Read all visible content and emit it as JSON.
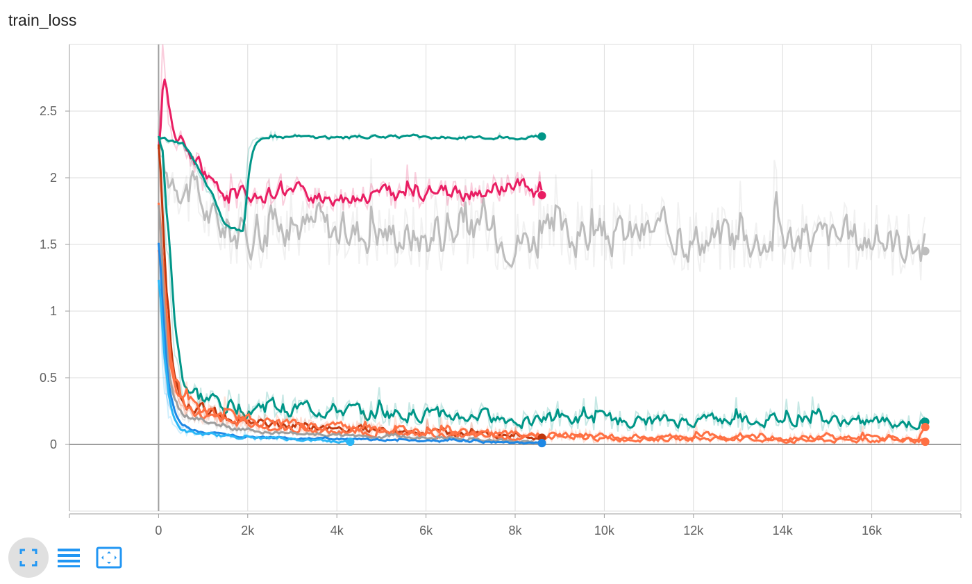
{
  "title": "train_loss",
  "chart_data": {
    "type": "line",
    "title": "train_loss",
    "xlim": [
      -2000,
      18000
    ],
    "ylim": [
      -0.5,
      3.0
    ],
    "x_ticks": [
      0,
      2000,
      4000,
      6000,
      8000,
      10000,
      12000,
      14000,
      16000
    ],
    "x_tick_labels": [
      "0",
      "2k",
      "4k",
      "6k",
      "8k",
      "10k",
      "12k",
      "14k",
      "16k"
    ],
    "y_ticks": [
      0,
      0.5,
      1,
      1.5,
      2,
      2.5
    ],
    "y_tick_labels": [
      "0",
      "0.5",
      "1",
      "1.5",
      "2",
      "2.5"
    ],
    "grid": true,
    "series": [
      {
        "color": "#bdbdbd",
        "x": [
          0,
          100,
          300,
          500,
          800,
          1000,
          1300,
          1600,
          2000,
          2500,
          3000,
          4000,
          5000,
          6000,
          7000,
          8000,
          9000,
          10000,
          11000,
          12000,
          13000,
          14000,
          15000,
          16000,
          17000,
          17200
        ],
        "y": [
          2.3,
          1.9,
          2.05,
          1.95,
          1.85,
          1.75,
          1.65,
          1.6,
          1.55,
          1.6,
          1.65,
          1.6,
          1.6,
          1.55,
          1.6,
          1.55,
          1.55,
          1.55,
          1.6,
          1.55,
          1.55,
          1.55,
          1.55,
          1.55,
          1.5,
          1.45
        ],
        "amp": 0.12
      },
      {
        "color": "#e91e63",
        "x": [
          0,
          100,
          200,
          400,
          600,
          800,
          1000,
          1200,
          1500,
          2000,
          3000,
          4000,
          5000,
          6000,
          7000,
          7500,
          8000,
          8300,
          8600
        ],
        "y": [
          2.3,
          3.0,
          2.4,
          2.3,
          2.2,
          2.15,
          2.0,
          1.9,
          1.85,
          1.88,
          1.87,
          1.85,
          1.88,
          1.87,
          1.88,
          1.9,
          1.95,
          1.9,
          1.87
        ],
        "amp": 0.05
      },
      {
        "color": "#009688",
        "x": [
          0,
          200,
          500,
          800,
          1000,
          1200,
          1400,
          1600,
          1800,
          1900,
          2000,
          2100,
          2500,
          3000,
          4000,
          5000,
          6000,
          7000,
          8000,
          8600
        ],
        "y": [
          2.3,
          2.28,
          2.25,
          2.1,
          1.95,
          1.85,
          1.65,
          1.62,
          1.6,
          1.62,
          2.2,
          2.28,
          2.3,
          2.31,
          2.3,
          2.31,
          2.3,
          2.3,
          2.3,
          2.31
        ],
        "amp": 0.008
      },
      {
        "color": "#009688",
        "x": [
          0,
          100,
          200,
          300,
          400,
          500,
          700,
          1000,
          1500,
          2000,
          3000,
          4000,
          5000,
          6000,
          7000,
          8000,
          9000,
          10000,
          11000,
          12000,
          13000,
          14000,
          15000,
          16000,
          17000,
          17200
        ],
        "y": [
          2.3,
          1.9,
          1.4,
          0.9,
          0.6,
          0.45,
          0.38,
          0.33,
          0.3,
          0.28,
          0.27,
          0.25,
          0.23,
          0.22,
          0.2,
          0.18,
          0.18,
          0.18,
          0.17,
          0.17,
          0.18,
          0.18,
          0.17,
          0.17,
          0.15,
          0.17
        ],
        "amp": 0.05
      },
      {
        "color": "#bf360c",
        "x": [
          0,
          100,
          200,
          300,
          400,
          600,
          1000,
          1500,
          2000,
          3000,
          4000,
          5000,
          6000,
          7000,
          8000,
          8600
        ],
        "y": [
          2.2,
          1.2,
          0.7,
          0.5,
          0.38,
          0.3,
          0.25,
          0.2,
          0.17,
          0.14,
          0.12,
          0.1,
          0.09,
          0.08,
          0.07,
          0.05
        ],
        "amp": 0.04
      },
      {
        "color": "#ff7043",
        "x": [
          0,
          100,
          200,
          300,
          500,
          800,
          1200,
          2000,
          3000,
          4000,
          5000,
          6000,
          7000,
          8000,
          9000,
          10000,
          11000,
          12000,
          13000,
          14000,
          15000,
          16000,
          17000,
          17200
        ],
        "y": [
          1.9,
          1.0,
          0.6,
          0.42,
          0.33,
          0.28,
          0.22,
          0.18,
          0.15,
          0.13,
          0.11,
          0.1,
          0.09,
          0.08,
          0.07,
          0.06,
          0.06,
          0.06,
          0.05,
          0.05,
          0.05,
          0.05,
          0.04,
          0.13
        ],
        "amp": 0.04
      },
      {
        "color": "#ff7043",
        "x": [
          0,
          200,
          500,
          1000,
          2000,
          3000,
          4000,
          5000,
          6000,
          7000,
          8000,
          9000,
          10000,
          11000,
          12000,
          13000,
          14000,
          15000,
          16000,
          17000,
          17200
        ],
        "y": [
          1.5,
          0.5,
          0.3,
          0.2,
          0.14,
          0.11,
          0.09,
          0.08,
          0.07,
          0.06,
          0.05,
          0.05,
          0.04,
          0.04,
          0.04,
          0.04,
          0.03,
          0.03,
          0.03,
          0.03,
          0.02
        ],
        "amp": 0.035
      },
      {
        "color": "#9e9e9e",
        "x": [
          0,
          100,
          200,
          400,
          800,
          1500,
          2500,
          4000,
          5500,
          7000,
          8600
        ],
        "y": [
          1.8,
          0.8,
          0.4,
          0.25,
          0.18,
          0.12,
          0.09,
          0.07,
          0.05,
          0.04,
          0.01
        ],
        "amp": 0.02
      },
      {
        "color": "#1e88e5",
        "x": [
          0,
          100,
          200,
          400,
          800,
          1500,
          2500,
          4000,
          5500,
          7000,
          8600
        ],
        "y": [
          1.5,
          0.6,
          0.3,
          0.15,
          0.1,
          0.07,
          0.05,
          0.04,
          0.03,
          0.02,
          0.01
        ],
        "amp": 0.015
      },
      {
        "color": "#29b6f6",
        "x": [
          0,
          100,
          200,
          300,
          500,
          800,
          1200,
          2000,
          3000,
          4000,
          4300
        ],
        "y": [
          1.2,
          0.5,
          0.25,
          0.15,
          0.1,
          0.08,
          0.07,
          0.05,
          0.04,
          0.02,
          0.02
        ],
        "amp": 0.02
      }
    ]
  },
  "toolbar": {
    "items": [
      {
        "icon": "fullscreen-icon"
      },
      {
        "icon": "data-table-icon"
      },
      {
        "icon": "fit-domain-icon"
      }
    ]
  }
}
